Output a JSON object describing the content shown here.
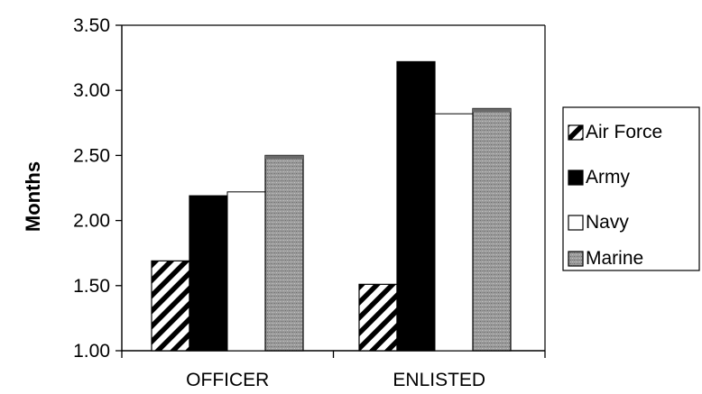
{
  "chart_data": {
    "type": "bar",
    "categories": [
      "OFFICER",
      "ENLISTED"
    ],
    "series": [
      {
        "name": "Air Force",
        "values": [
          1.69,
          1.51
        ],
        "pattern": "hatch",
        "color": "#000000"
      },
      {
        "name": "Army",
        "values": [
          2.19,
          3.22
        ],
        "pattern": "solid",
        "color": "#000000"
      },
      {
        "name": "Navy",
        "values": [
          2.22,
          2.82
        ],
        "pattern": "solid",
        "color": "#ffffff"
      },
      {
        "name": "Marine",
        "values": [
          2.5,
          2.86
        ],
        "pattern": "stipple",
        "color": "#999999"
      }
    ],
    "xlabel": "",
    "ylabel": "Months",
    "ylim": [
      1.0,
      3.5
    ],
    "yticks": [
      "1.00",
      "1.50",
      "2.00",
      "2.50",
      "3.00",
      "3.50"
    ],
    "grid": false,
    "legend_position": "right"
  }
}
